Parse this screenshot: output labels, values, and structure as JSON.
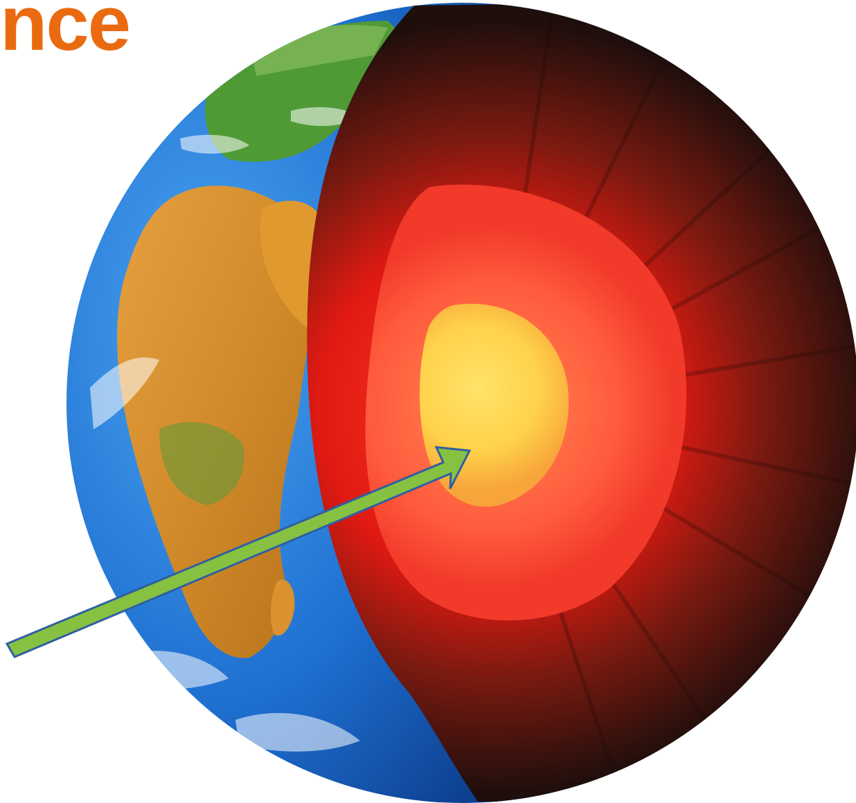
{
  "title": {
    "text": "nce",
    "color": "#ea6a10"
  },
  "illustration": {
    "subject": "globe-cutaway",
    "colors": {
      "ocean": "#1e6fd0",
      "land": "#d9922e",
      "vegetation": "#3c8f2f",
      "mantle_outer": "#2a1410",
      "mantle": "#e01a12",
      "outer_core": "#ff5a3c",
      "inner_core": "#ffd24a"
    }
  },
  "pointer": {
    "color": "#86c142",
    "outline": "#2f5fa0",
    "target": "inner-core"
  }
}
